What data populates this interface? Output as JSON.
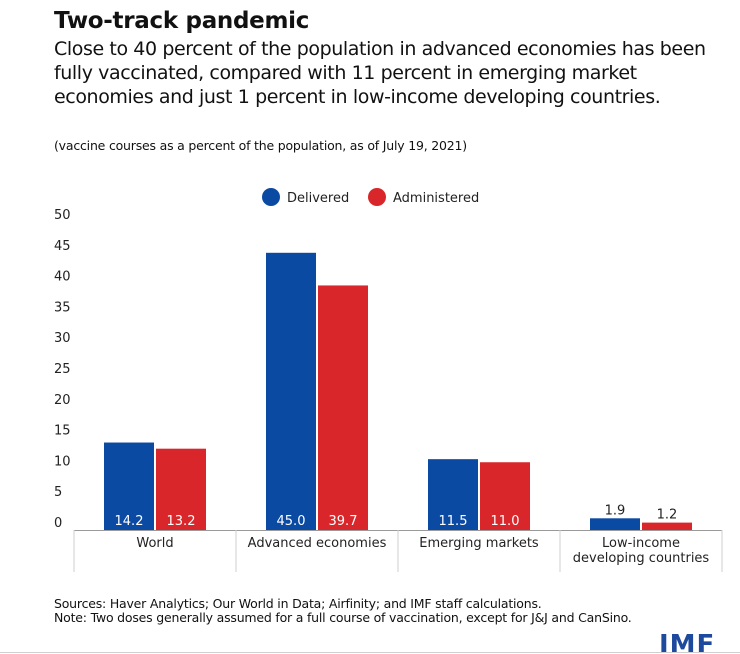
{
  "header": {
    "title": "Two-track pandemic",
    "subtitle": "Close to 40 percent of the population in advanced economies has been fully vaccinated, compared with 11 percent in emerging market economies and just 1 percent in low-income developing countries.",
    "note": "(vaccine courses as a percent of the population, as of July 19, 2021)"
  },
  "chart_data": {
    "type": "bar",
    "categories": [
      "World",
      "Advanced economies",
      "Emerging markets",
      "Low-income developing countries"
    ],
    "category_lines": [
      [
        "World"
      ],
      [
        "Advanced economies"
      ],
      [
        "Emerging markets"
      ],
      [
        "Low-income",
        "developing countries"
      ]
    ],
    "series": [
      {
        "name": "Delivered",
        "values": [
          14.2,
          45.0,
          11.5,
          1.9
        ],
        "labels": [
          "14.2",
          "45.0",
          "11.5",
          "1.9"
        ],
        "color": "#0b4aa2"
      },
      {
        "name": "Administered",
        "values": [
          13.2,
          39.7,
          11.0,
          1.2
        ],
        "labels": [
          "13.2",
          "39.7",
          "11.0",
          "1.2"
        ],
        "color": "#d8262a"
      }
    ],
    "ylim": [
      0,
      50
    ],
    "yticks": [
      "0",
      "5",
      "10",
      "15",
      "20",
      "25",
      "30",
      "35",
      "40",
      "45",
      "50"
    ],
    "title": "Two-track pandemic",
    "xlabel": "",
    "ylabel": "",
    "legend_position": "top-center",
    "grid": false
  },
  "footer": {
    "sources": "Sources: Haver Analytics; Our World in Data; Airfinity; and IMF staff calculations.",
    "note": "Note: Two doses generally assumed for a full course of vaccination, except for J&J and CanSino."
  },
  "brand": {
    "logo_text": "IMF",
    "logo_color": "#1d4a9c"
  }
}
